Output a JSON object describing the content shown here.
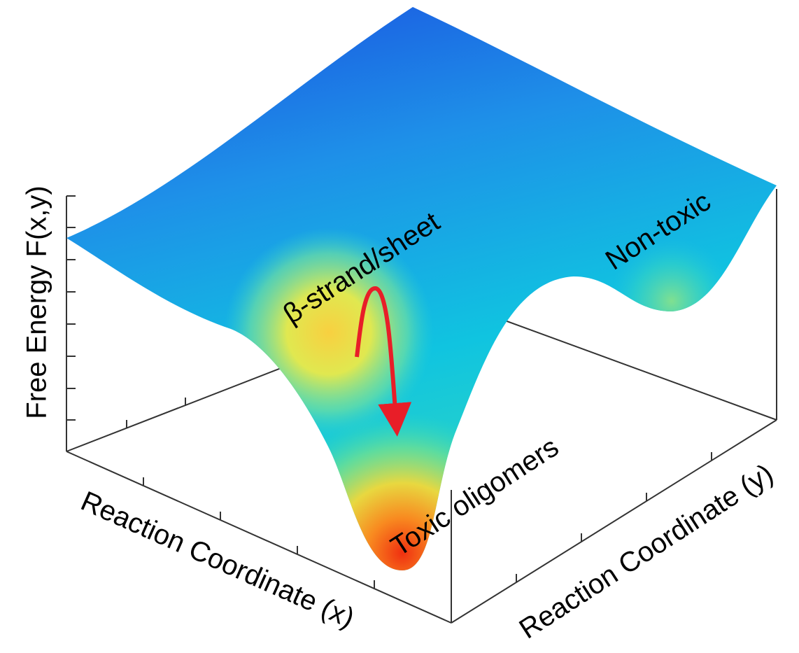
{
  "axes": {
    "z_label": "Free Energy F(x,y)",
    "x_label": "Reaction Coordinate (x)",
    "y_label": "Reaction Coordinate (y)"
  },
  "annotations": {
    "beta": "β-strand/sheet",
    "nontoxic": "Non-toxic",
    "toxic": "Toxic oligomers"
  }
}
